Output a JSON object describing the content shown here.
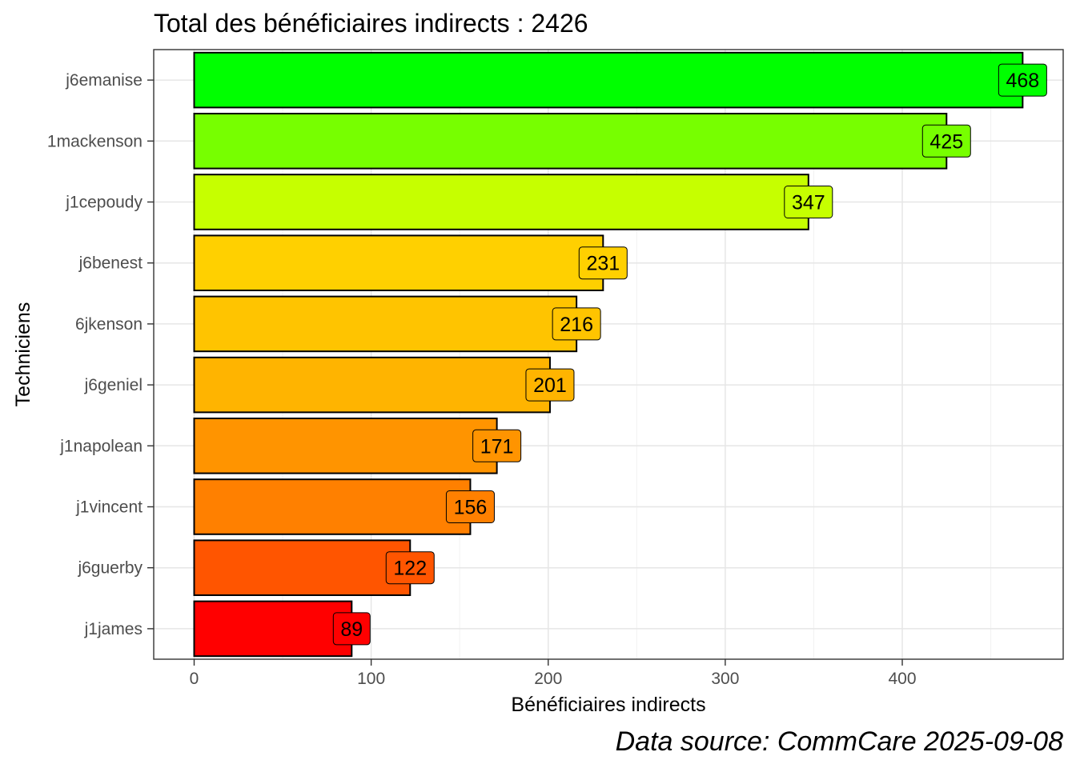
{
  "chart_data": {
    "type": "bar",
    "orientation": "horizontal",
    "title": "Total des bénéficiaires indirects : 2426",
    "xlabel": "Bénéficiaires indirects",
    "ylabel": "Techniciens",
    "caption": "Data source: CommCare 2025-09-08",
    "xlim": [
      0,
      490
    ],
    "x_ticks": [
      0,
      100,
      200,
      300,
      400
    ],
    "grid": true,
    "legend": "none",
    "categories": [
      "j6emanise",
      "1mackenson",
      "j1cepoudy",
      "j6benest",
      "6jkenson",
      "j6geniel",
      "j1napolean",
      "j1vincent",
      "j6guerby",
      "j1james"
    ],
    "values": [
      468,
      425,
      347,
      231,
      216,
      201,
      171,
      156,
      122,
      89
    ],
    "colors": [
      "#00ff00",
      "#77ff00",
      "#c6ff00",
      "#ffd000",
      "#ffc400",
      "#ffb400",
      "#ff9400",
      "#ff8000",
      "#ff5500",
      "#ff0000"
    ]
  }
}
